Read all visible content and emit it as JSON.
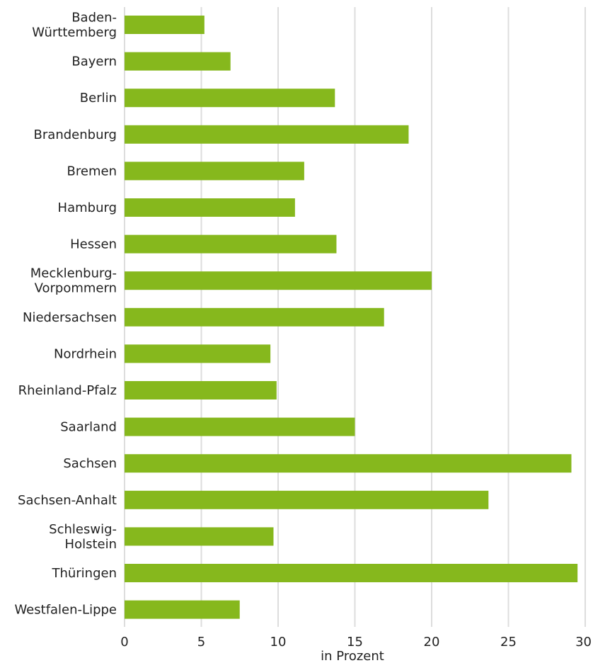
{
  "chart_data": {
    "type": "bar",
    "orientation": "horizontal",
    "categories": [
      "Baden-Württemberg",
      "Bayern",
      "Berlin",
      "Brandenburg",
      "Bremen",
      "Hamburg",
      "Hessen",
      "Mecklenburg-Vorpommern",
      "Niedersachsen",
      "Nordrhein",
      "Rheinland-Pfalz",
      "Saarland",
      "Sachsen",
      "Sachsen-Anhalt",
      "Schleswig-Holstein",
      "Thüringen",
      "Westfalen-Lippe"
    ],
    "category_lines": [
      [
        "Baden-",
        "Württemberg"
      ],
      [
        "Bayern"
      ],
      [
        "Berlin"
      ],
      [
        "Brandenburg"
      ],
      [
        "Bremen"
      ],
      [
        "Hamburg"
      ],
      [
        "Hessen"
      ],
      [
        "Mecklenburg-",
        "Vorpommern"
      ],
      [
        "Niedersachsen"
      ],
      [
        "Nordrhein"
      ],
      [
        "Rheinland-Pfalz"
      ],
      [
        "Saarland"
      ],
      [
        "Sachsen"
      ],
      [
        "Sachsen-Anhalt"
      ],
      [
        "Schleswig-",
        "Holstein"
      ],
      [
        "Thüringen"
      ],
      [
        "Westfalen-Lippe"
      ]
    ],
    "values": [
      5.2,
      6.9,
      13.7,
      18.5,
      11.7,
      11.1,
      13.8,
      20.0,
      16.9,
      9.5,
      9.9,
      15.0,
      29.1,
      23.7,
      9.7,
      29.5,
      7.5
    ],
    "xlim": [
      0,
      30
    ],
    "xticks": [
      0,
      5,
      10,
      15,
      20,
      25,
      30
    ],
    "xlabel": "in Prozent",
    "ylabel": "",
    "title": "",
    "grid": "vertical",
    "legend": "none",
    "colors": {
      "bar": "#86b81d",
      "grid": "#dddddd",
      "text": "#222222"
    }
  }
}
